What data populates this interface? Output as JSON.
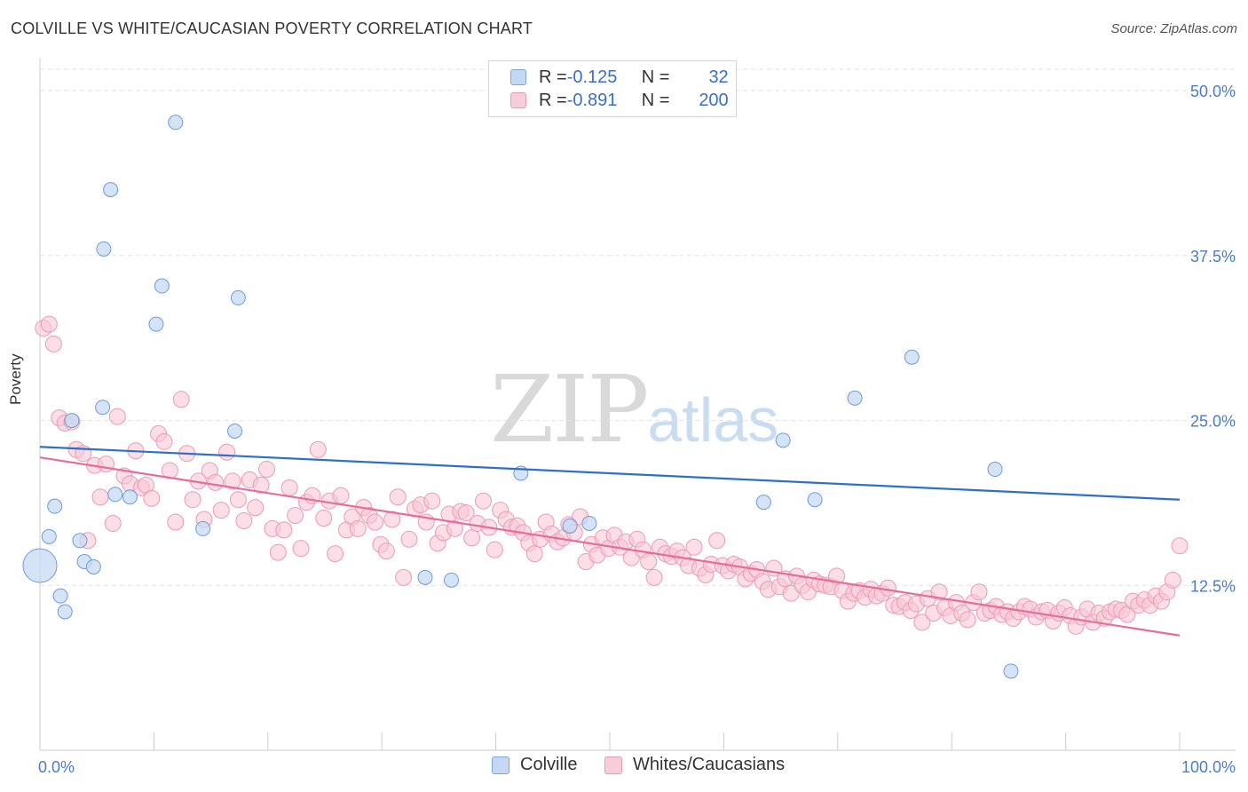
{
  "title": "COLVILLE VS WHITE/CAUCASIAN POVERTY CORRELATION CHART",
  "source": "Source: ZipAtlas.com",
  "watermark": {
    "zip": "ZIP",
    "atlas": "atlas"
  },
  "legend": {
    "rows": [
      {
        "r_label": "R = ",
        "r_value": "-0.125",
        "n_label": "N = ",
        "n_value": "32"
      },
      {
        "r_label": "R = ",
        "r_value": "-0.891",
        "n_label": "N = ",
        "n_value": "200"
      }
    ]
  },
  "bottom_legend": [
    "Colville",
    "Whites/Caucasians"
  ],
  "chart_data": {
    "type": "scatter",
    "title": "COLVILLE VS WHITE/CAUCASIAN POVERTY CORRELATION CHART",
    "xlabel": "",
    "ylabel": "Poverty",
    "xlim": [
      0,
      100
    ],
    "ylim": [
      0,
      52.5
    ],
    "x_tick_labels": [
      "0.0%",
      "100.0%"
    ],
    "y_tick_labels": [
      "12.5%",
      "25.0%",
      "37.5%",
      "50.0%"
    ],
    "y_ticks": [
      12.5,
      25.0,
      37.5,
      50.0
    ],
    "grid": true,
    "legend_placement": "top-center",
    "colors": {
      "colville": "#5b8fd6",
      "whites": "#e8779c"
    },
    "series": [
      {
        "name": "Colville",
        "R": -0.125,
        "N": 32,
        "trend": {
          "x": [
            0,
            100
          ],
          "y": [
            23.0,
            19.0
          ]
        },
        "points": [
          {
            "x": 0.0,
            "y": 14.0,
            "big": true
          },
          {
            "x": 0.8,
            "y": 16.2
          },
          {
            "x": 1.3,
            "y": 18.5
          },
          {
            "x": 1.8,
            "y": 11.7
          },
          {
            "x": 2.2,
            "y": 10.5
          },
          {
            "x": 2.8,
            "y": 25.0
          },
          {
            "x": 3.5,
            "y": 15.9
          },
          {
            "x": 3.9,
            "y": 14.3
          },
          {
            "x": 4.7,
            "y": 13.9
          },
          {
            "x": 5.5,
            "y": 26.0
          },
          {
            "x": 5.6,
            "y": 38.0
          },
          {
            "x": 6.2,
            "y": 42.5
          },
          {
            "x": 6.6,
            "y": 19.4
          },
          {
            "x": 7.9,
            "y": 19.2
          },
          {
            "x": 10.2,
            "y": 32.3
          },
          {
            "x": 10.7,
            "y": 35.2
          },
          {
            "x": 11.9,
            "y": 47.6
          },
          {
            "x": 14.3,
            "y": 16.8
          },
          {
            "x": 17.1,
            "y": 24.2
          },
          {
            "x": 17.4,
            "y": 34.3
          },
          {
            "x": 33.8,
            "y": 13.1
          },
          {
            "x": 36.1,
            "y": 12.9
          },
          {
            "x": 42.2,
            "y": 21.0
          },
          {
            "x": 46.5,
            "y": 17.0
          },
          {
            "x": 48.2,
            "y": 17.2
          },
          {
            "x": 63.5,
            "y": 18.8
          },
          {
            "x": 65.2,
            "y": 23.5
          },
          {
            "x": 68.0,
            "y": 19.0
          },
          {
            "x": 71.5,
            "y": 26.7
          },
          {
            "x": 76.5,
            "y": 29.8
          },
          {
            "x": 83.8,
            "y": 21.3
          },
          {
            "x": 85.2,
            "y": 6.0
          }
        ]
      },
      {
        "name": "Whites/Caucasians",
        "R": -0.891,
        "N": 200,
        "trend": {
          "x": [
            0,
            100
          ],
          "y": [
            22.2,
            8.7
          ]
        },
        "points": [
          {
            "x": 0.3,
            "y": 32.0
          },
          {
            "x": 0.8,
            "y": 32.3
          },
          {
            "x": 1.2,
            "y": 30.8
          },
          {
            "x": 1.7,
            "y": 25.2
          },
          {
            "x": 2.2,
            "y": 24.8
          },
          {
            "x": 2.8,
            "y": 24.9
          },
          {
            "x": 3.2,
            "y": 22.8
          },
          {
            "x": 3.8,
            "y": 22.5
          },
          {
            "x": 4.2,
            "y": 15.9
          },
          {
            "x": 4.8,
            "y": 21.6
          },
          {
            "x": 5.3,
            "y": 19.2
          },
          {
            "x": 5.8,
            "y": 21.7
          },
          {
            "x": 6.4,
            "y": 17.2
          },
          {
            "x": 6.8,
            "y": 25.3
          },
          {
            "x": 7.4,
            "y": 20.8
          },
          {
            "x": 7.9,
            "y": 20.2
          },
          {
            "x": 8.4,
            "y": 22.7
          },
          {
            "x": 8.9,
            "y": 19.9
          },
          {
            "x": 9.3,
            "y": 20.1
          },
          {
            "x": 9.8,
            "y": 19.1
          },
          {
            "x": 10.4,
            "y": 24.0
          },
          {
            "x": 10.9,
            "y": 23.4
          },
          {
            "x": 11.4,
            "y": 21.2
          },
          {
            "x": 11.9,
            "y": 17.3
          },
          {
            "x": 12.4,
            "y": 26.6
          },
          {
            "x": 12.9,
            "y": 22.5
          },
          {
            "x": 13.4,
            "y": 19.0
          },
          {
            "x": 13.9,
            "y": 20.4
          },
          {
            "x": 14.4,
            "y": 17.5
          },
          {
            "x": 14.9,
            "y": 21.2
          },
          {
            "x": 15.4,
            "y": 20.3
          },
          {
            "x": 15.9,
            "y": 18.2
          },
          {
            "x": 16.4,
            "y": 22.6
          },
          {
            "x": 16.9,
            "y": 20.4
          },
          {
            "x": 17.4,
            "y": 19.0
          },
          {
            "x": 17.9,
            "y": 17.4
          },
          {
            "x": 18.4,
            "y": 20.5
          },
          {
            "x": 18.9,
            "y": 18.4
          },
          {
            "x": 19.4,
            "y": 20.1
          },
          {
            "x": 19.9,
            "y": 21.3
          },
          {
            "x": 20.4,
            "y": 16.8
          },
          {
            "x": 20.9,
            "y": 15.0
          },
          {
            "x": 21.4,
            "y": 16.7
          },
          {
            "x": 21.9,
            "y": 19.9
          },
          {
            "x": 22.4,
            "y": 17.8
          },
          {
            "x": 22.9,
            "y": 15.3
          },
          {
            "x": 23.4,
            "y": 18.8
          },
          {
            "x": 23.9,
            "y": 19.3
          },
          {
            "x": 24.4,
            "y": 22.8
          },
          {
            "x": 24.9,
            "y": 17.6
          },
          {
            "x": 25.4,
            "y": 18.9
          },
          {
            "x": 25.9,
            "y": 14.9
          },
          {
            "x": 26.4,
            "y": 19.3
          },
          {
            "x": 26.9,
            "y": 16.7
          },
          {
            "x": 27.4,
            "y": 17.7
          },
          {
            "x": 27.9,
            "y": 16.8
          },
          {
            "x": 28.4,
            "y": 18.4
          },
          {
            "x": 28.9,
            "y": 17.8
          },
          {
            "x": 29.4,
            "y": 17.3
          },
          {
            "x": 29.9,
            "y": 15.6
          },
          {
            "x": 30.4,
            "y": 15.1
          },
          {
            "x": 30.9,
            "y": 17.5
          },
          {
            "x": 31.4,
            "y": 19.2
          },
          {
            "x": 31.9,
            "y": 13.1
          },
          {
            "x": 32.4,
            "y": 16.0
          },
          {
            "x": 32.9,
            "y": 18.3
          },
          {
            "x": 33.4,
            "y": 18.6
          },
          {
            "x": 33.9,
            "y": 17.3
          },
          {
            "x": 34.4,
            "y": 18.9
          },
          {
            "x": 34.9,
            "y": 15.7
          },
          {
            "x": 35.4,
            "y": 16.5
          },
          {
            "x": 35.9,
            "y": 17.9
          },
          {
            "x": 36.4,
            "y": 16.8
          },
          {
            "x": 36.9,
            "y": 18.1
          },
          {
            "x": 37.4,
            "y": 18.0
          },
          {
            "x": 37.9,
            "y": 16.1
          },
          {
            "x": 38.4,
            "y": 17.2
          },
          {
            "x": 38.9,
            "y": 18.9
          },
          {
            "x": 39.4,
            "y": 16.9
          },
          {
            "x": 39.9,
            "y": 15.2
          },
          {
            "x": 40.4,
            "y": 18.2
          },
          {
            "x": 40.9,
            "y": 17.5
          },
          {
            "x": 41.4,
            "y": 16.9
          },
          {
            "x": 41.9,
            "y": 17.0
          },
          {
            "x": 42.4,
            "y": 16.5
          },
          {
            "x": 42.9,
            "y": 15.7
          },
          {
            "x": 43.4,
            "y": 14.9
          },
          {
            "x": 43.9,
            "y": 16.0
          },
          {
            "x": 44.4,
            "y": 17.3
          },
          {
            "x": 44.9,
            "y": 16.4
          },
          {
            "x": 45.4,
            "y": 15.8
          },
          {
            "x": 45.9,
            "y": 16.1
          },
          {
            "x": 46.4,
            "y": 17.1
          },
          {
            "x": 46.9,
            "y": 16.5
          },
          {
            "x": 47.4,
            "y": 17.7
          },
          {
            "x": 47.9,
            "y": 14.3
          },
          {
            "x": 48.4,
            "y": 15.6
          },
          {
            "x": 48.9,
            "y": 14.8
          },
          {
            "x": 49.4,
            "y": 16.1
          },
          {
            "x": 49.9,
            "y": 15.3
          },
          {
            "x": 50.4,
            "y": 16.3
          },
          {
            "x": 50.9,
            "y": 15.4
          },
          {
            "x": 51.4,
            "y": 15.8
          },
          {
            "x": 51.9,
            "y": 14.6
          },
          {
            "x": 52.4,
            "y": 16.0
          },
          {
            "x": 52.9,
            "y": 15.2
          },
          {
            "x": 53.4,
            "y": 14.3
          },
          {
            "x": 53.9,
            "y": 13.1
          },
          {
            "x": 54.4,
            "y": 15.4
          },
          {
            "x": 54.9,
            "y": 14.9
          },
          {
            "x": 55.4,
            "y": 14.7
          },
          {
            "x": 55.9,
            "y": 15.1
          },
          {
            "x": 56.4,
            "y": 14.6
          },
          {
            "x": 56.9,
            "y": 14.0
          },
          {
            "x": 57.4,
            "y": 15.4
          },
          {
            "x": 57.9,
            "y": 13.8
          },
          {
            "x": 58.4,
            "y": 13.3
          },
          {
            "x": 58.9,
            "y": 14.1
          },
          {
            "x": 59.4,
            "y": 15.9
          },
          {
            "x": 59.9,
            "y": 14.0
          },
          {
            "x": 60.4,
            "y": 13.6
          },
          {
            "x": 60.9,
            "y": 14.1
          },
          {
            "x": 61.4,
            "y": 13.9
          },
          {
            "x": 61.9,
            "y": 13.0
          },
          {
            "x": 62.4,
            "y": 13.4
          },
          {
            "x": 62.9,
            "y": 13.7
          },
          {
            "x": 63.4,
            "y": 12.8
          },
          {
            "x": 63.9,
            "y": 12.2
          },
          {
            "x": 64.4,
            "y": 13.8
          },
          {
            "x": 64.9,
            "y": 12.4
          },
          {
            "x": 65.4,
            "y": 13.0
          },
          {
            "x": 65.9,
            "y": 11.9
          },
          {
            "x": 66.4,
            "y": 13.2
          },
          {
            "x": 66.9,
            "y": 12.5
          },
          {
            "x": 67.4,
            "y": 12.0
          },
          {
            "x": 67.9,
            "y": 12.9
          },
          {
            "x": 68.4,
            "y": 12.6
          },
          {
            "x": 68.9,
            "y": 12.5
          },
          {
            "x": 69.4,
            "y": 12.4
          },
          {
            "x": 69.9,
            "y": 13.2
          },
          {
            "x": 70.4,
            "y": 12.1
          },
          {
            "x": 70.9,
            "y": 11.3
          },
          {
            "x": 71.4,
            "y": 11.9
          },
          {
            "x": 71.9,
            "y": 12.1
          },
          {
            "x": 72.4,
            "y": 11.6
          },
          {
            "x": 72.9,
            "y": 12.2
          },
          {
            "x": 73.4,
            "y": 11.7
          },
          {
            "x": 73.9,
            "y": 11.9
          },
          {
            "x": 74.4,
            "y": 12.3
          },
          {
            "x": 74.9,
            "y": 11.0
          },
          {
            "x": 75.4,
            "y": 10.9
          },
          {
            "x": 75.9,
            "y": 11.2
          },
          {
            "x": 76.4,
            "y": 10.6
          },
          {
            "x": 76.9,
            "y": 11.1
          },
          {
            "x": 77.4,
            "y": 9.7
          },
          {
            "x": 77.9,
            "y": 11.5
          },
          {
            "x": 78.4,
            "y": 10.4
          },
          {
            "x": 78.9,
            "y": 12.0
          },
          {
            "x": 79.4,
            "y": 10.8
          },
          {
            "x": 79.9,
            "y": 10.2
          },
          {
            "x": 80.4,
            "y": 11.2
          },
          {
            "x": 80.9,
            "y": 10.4
          },
          {
            "x": 81.4,
            "y": 9.9
          },
          {
            "x": 81.9,
            "y": 11.2
          },
          {
            "x": 82.4,
            "y": 12.0
          },
          {
            "x": 82.9,
            "y": 10.4
          },
          {
            "x": 83.4,
            "y": 10.6
          },
          {
            "x": 83.9,
            "y": 10.9
          },
          {
            "x": 84.4,
            "y": 10.3
          },
          {
            "x": 84.9,
            "y": 10.5
          },
          {
            "x": 85.4,
            "y": 10.0
          },
          {
            "x": 85.9,
            "y": 10.5
          },
          {
            "x": 86.4,
            "y": 10.9
          },
          {
            "x": 86.9,
            "y": 10.7
          },
          {
            "x": 87.4,
            "y": 10.1
          },
          {
            "x": 87.9,
            "y": 10.5
          },
          {
            "x": 88.4,
            "y": 10.6
          },
          {
            "x": 88.9,
            "y": 9.8
          },
          {
            "x": 89.4,
            "y": 10.4
          },
          {
            "x": 89.9,
            "y": 10.8
          },
          {
            "x": 90.4,
            "y": 10.2
          },
          {
            "x": 90.9,
            "y": 9.4
          },
          {
            "x": 91.4,
            "y": 10.1
          },
          {
            "x": 91.9,
            "y": 10.7
          },
          {
            "x": 92.4,
            "y": 9.7
          },
          {
            "x": 92.9,
            "y": 10.4
          },
          {
            "x": 93.4,
            "y": 10.0
          },
          {
            "x": 93.9,
            "y": 10.5
          },
          {
            "x": 94.4,
            "y": 10.7
          },
          {
            "x": 94.9,
            "y": 10.6
          },
          {
            "x": 95.4,
            "y": 10.3
          },
          {
            "x": 95.9,
            "y": 11.3
          },
          {
            "x": 96.4,
            "y": 11.0
          },
          {
            "x": 96.9,
            "y": 11.4
          },
          {
            "x": 97.4,
            "y": 11.0
          },
          {
            "x": 97.9,
            "y": 11.7
          },
          {
            "x": 98.4,
            "y": 11.3
          },
          {
            "x": 98.9,
            "y": 12.0
          },
          {
            "x": 99.4,
            "y": 12.9
          },
          {
            "x": 100.0,
            "y": 15.5
          }
        ]
      }
    ]
  }
}
